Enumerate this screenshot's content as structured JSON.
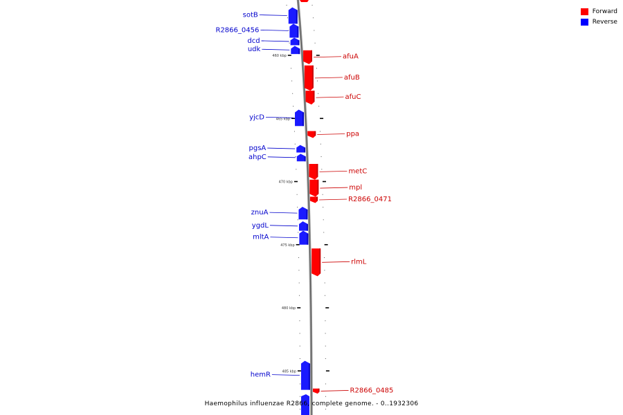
{
  "title": "Haemophilus influenzae R2866, complete genome. - 0..1932306",
  "legend": {
    "forward_label": "Forward",
    "reverse_label": "Reverse",
    "forward_color": "#ff0000",
    "reverse_color": "#0000ff"
  },
  "label_colors": {
    "forward": "#cc0000",
    "reverse": "#0000cc"
  },
  "scale_ticks": [
    {
      "label": "460 kbp",
      "pos_kbp": 460
    },
    {
      "label": "465 kbp",
      "pos_kbp": 465
    },
    {
      "label": "470 kbp",
      "pos_kbp": 470
    },
    {
      "label": "475 kbp",
      "pos_kbp": 475
    },
    {
      "label": "480 kbp",
      "pos_kbp": 480
    },
    {
      "label": "485 kbp",
      "pos_kbp": 485
    }
  ],
  "genes": [
    {
      "name": "sotB",
      "strand": "reverse",
      "start_kbp": 456.2,
      "end_kbp": 457.5
    },
    {
      "name": "R2866_0456",
      "strand": "reverse",
      "start_kbp": 457.5,
      "end_kbp": 458.6
    },
    {
      "name": "dcd",
      "strand": "reverse",
      "start_kbp": 458.6,
      "end_kbp": 459.2
    },
    {
      "name": "udk",
      "strand": "reverse",
      "start_kbp": 459.25,
      "end_kbp": 459.9
    },
    {
      "name": "afuA",
      "strand": "forward",
      "start_kbp": 459.6,
      "end_kbp": 460.7
    },
    {
      "name": "afuB",
      "strand": "forward",
      "start_kbp": 460.8,
      "end_kbp": 462.8
    },
    {
      "name": "afuC",
      "strand": "forward",
      "start_kbp": 462.8,
      "end_kbp": 463.9
    },
    {
      "name": "yjcD",
      "strand": "reverse",
      "start_kbp": 464.3,
      "end_kbp": 465.6
    },
    {
      "name": "ppa",
      "strand": "forward",
      "start_kbp": 466.0,
      "end_kbp": 466.55
    },
    {
      "name": "pgsA",
      "strand": "reverse",
      "start_kbp": 467.1,
      "end_kbp": 467.7
    },
    {
      "name": "ahpC",
      "strand": "reverse",
      "start_kbp": 467.8,
      "end_kbp": 468.4
    },
    {
      "name": "metC",
      "strand": "forward",
      "start_kbp": 468.6,
      "end_kbp": 469.85
    },
    {
      "name": "mpl",
      "strand": "forward",
      "start_kbp": 469.85,
      "end_kbp": 471.2
    },
    {
      "name": "R2866_0471",
      "strand": "forward",
      "start_kbp": 471.2,
      "end_kbp": 471.7
    },
    {
      "name": "znuA",
      "strand": "reverse",
      "start_kbp": 472.0,
      "end_kbp": 473.0
    },
    {
      "name": "ygdL",
      "strand": "reverse",
      "start_kbp": 473.15,
      "end_kbp": 473.9
    },
    {
      "name": "mltA",
      "strand": "reverse",
      "start_kbp": 473.9,
      "end_kbp": 475.0
    },
    {
      "name": "rlmL",
      "strand": "forward",
      "start_kbp": 475.3,
      "end_kbp": 477.5
    },
    {
      "name": "hemR",
      "strand": "reverse",
      "start_kbp": 484.2,
      "end_kbp": 486.5
    },
    {
      "name": "R2866_0485",
      "strand": "forward",
      "start_kbp": 486.4,
      "end_kbp": 486.8
    }
  ]
}
